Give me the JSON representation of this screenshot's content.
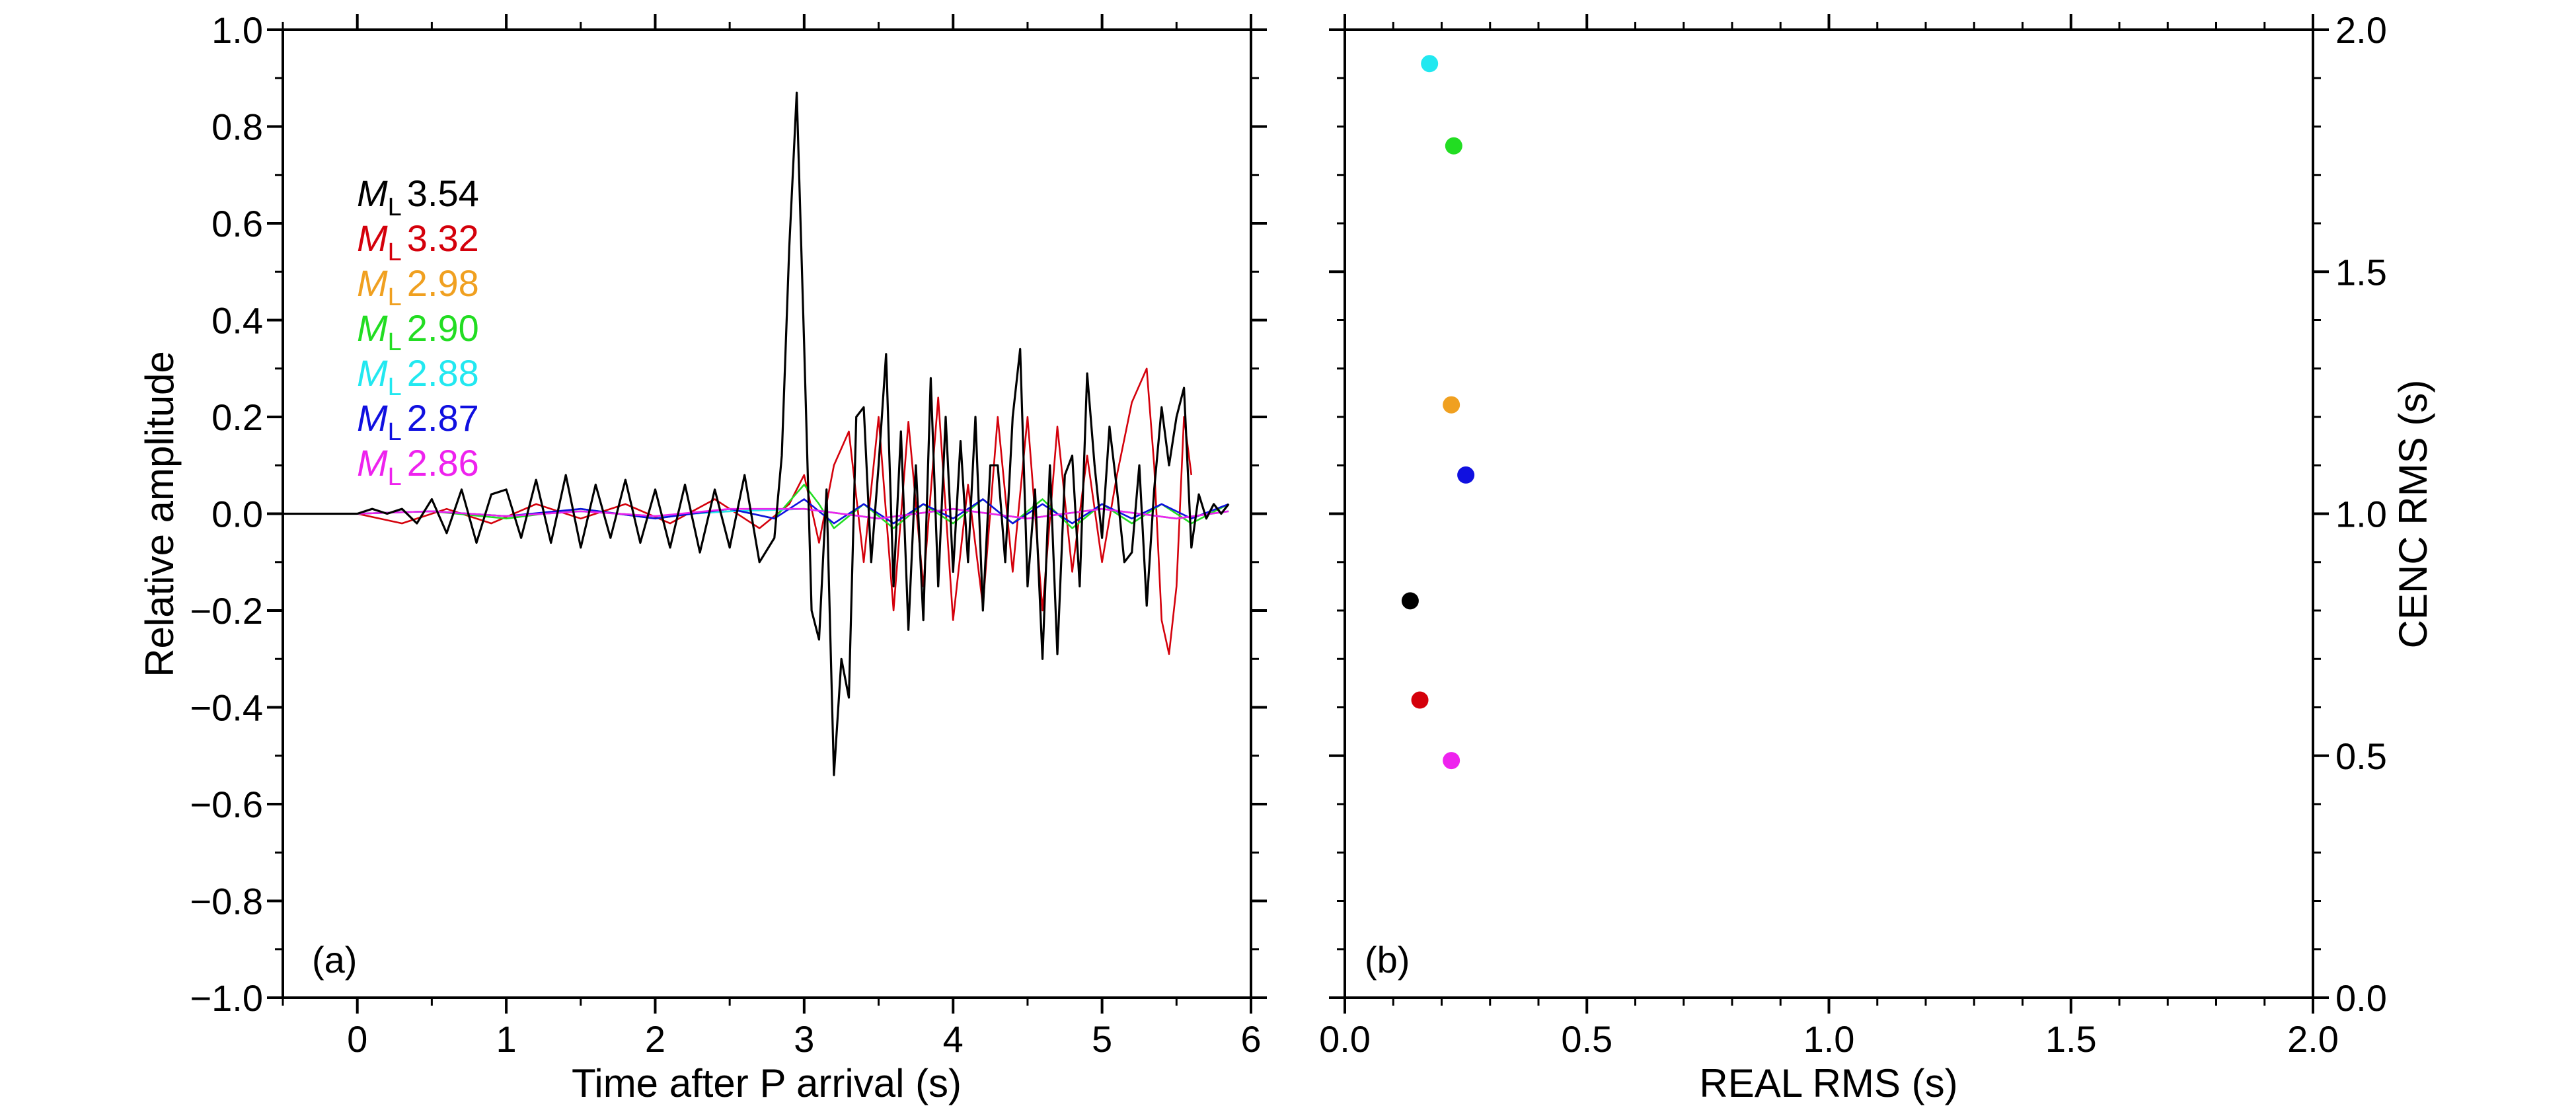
{
  "chart_data": [
    {
      "panel": "a",
      "type": "line",
      "panel_label": "(a)",
      "xlabel": "Time after P arrival (s)",
      "ylabel": "Relative amplitude",
      "xlim": [
        -0.5,
        6
      ],
      "ylim": [
        -1.0,
        1.0
      ],
      "xticks": [
        0,
        1,
        2,
        3,
        4,
        5,
        6
      ],
      "xtick_labels": [
        "0",
        "1",
        "2",
        "3",
        "4",
        "5",
        "6"
      ],
      "yticks": [
        -1.0,
        -0.8,
        -0.6,
        -0.4,
        -0.2,
        0.0,
        0.2,
        0.4,
        0.6,
        0.8,
        1.0
      ],
      "ytick_labels": [
        "−1.0",
        "−0.8",
        "−0.6",
        "−0.4",
        "−0.2",
        "0.0",
        "0.2",
        "0.4",
        "0.6",
        "0.8",
        "1.0"
      ],
      "legend_position": "upper-left",
      "series": [
        {
          "name": "ML 3.54",
          "ml": "3.54",
          "color": "#000000",
          "x": [
            -0.5,
            0,
            0.1,
            0.2,
            0.3,
            0.4,
            0.5,
            0.6,
            0.7,
            0.8,
            0.9,
            1.0,
            1.1,
            1.2,
            1.3,
            1.4,
            1.5,
            1.6,
            1.7,
            1.8,
            1.9,
            2.0,
            2.1,
            2.2,
            2.3,
            2.4,
            2.5,
            2.6,
            2.7,
            2.8,
            2.85,
            2.9,
            2.95,
            3.0,
            3.05,
            3.1,
            3.15,
            3.2,
            3.25,
            3.3,
            3.35,
            3.4,
            3.45,
            3.5,
            3.55,
            3.6,
            3.65,
            3.7,
            3.75,
            3.8,
            3.85,
            3.9,
            3.95,
            4.0,
            4.05,
            4.1,
            4.15,
            4.2,
            4.25,
            4.3,
            4.35,
            4.4,
            4.45,
            4.5,
            4.55,
            4.6,
            4.65,
            4.7,
            4.75,
            4.8,
            4.85,
            4.9,
            4.95,
            5.0,
            5.05,
            5.1,
            5.15,
            5.2,
            5.25,
            5.3,
            5.35,
            5.4,
            5.45,
            5.5,
            5.55,
            5.6,
            5.65,
            5.7,
            5.75,
            5.8,
            5.85
          ],
          "y": [
            0,
            0,
            0.01,
            0.0,
            0.01,
            -0.02,
            0.03,
            -0.04,
            0.05,
            -0.06,
            0.04,
            0.05,
            -0.05,
            0.07,
            -0.06,
            0.08,
            -0.07,
            0.06,
            -0.05,
            0.07,
            -0.06,
            0.05,
            -0.07,
            0.06,
            -0.08,
            0.05,
            -0.07,
            0.08,
            -0.1,
            -0.05,
            0.12,
            0.55,
            0.87,
            0.35,
            -0.2,
            -0.26,
            0.05,
            -0.54,
            -0.3,
            -0.38,
            0.2,
            0.22,
            -0.1,
            0.1,
            0.33,
            -0.15,
            0.17,
            -0.24,
            0.1,
            -0.22,
            0.28,
            -0.15,
            0.2,
            -0.12,
            0.15,
            -0.1,
            0.2,
            -0.2,
            0.1,
            0.1,
            -0.1,
            0.2,
            0.34,
            -0.15,
            0.05,
            -0.3,
            0.1,
            -0.29,
            0.08,
            0.12,
            -0.15,
            0.29,
            0.1,
            -0.05,
            0.18,
            0.05,
            -0.1,
            -0.08,
            0.1,
            -0.19,
            0.05,
            0.22,
            0.1,
            0.2,
            0.26,
            -0.07,
            0.04,
            -0.01,
            0.02,
            0.0,
            0.02
          ]
        },
        {
          "name": "ML 3.32",
          "ml": "3.32",
          "color": "#d4000b",
          "x": [
            -0.5,
            0,
            0.3,
            0.6,
            0.9,
            1.2,
            1.5,
            1.8,
            2.1,
            2.4,
            2.7,
            2.9,
            3.0,
            3.1,
            3.2,
            3.3,
            3.4,
            3.5,
            3.6,
            3.7,
            3.8,
            3.9,
            4.0,
            4.1,
            4.2,
            4.3,
            4.4,
            4.5,
            4.6,
            4.7,
            4.8,
            4.9,
            5.0,
            5.1,
            5.2,
            5.3,
            5.35,
            5.4,
            5.45,
            5.5,
            5.55,
            5.6
          ],
          "y": [
            0,
            0,
            -0.02,
            0.01,
            -0.02,
            0.02,
            -0.01,
            0.02,
            -0.02,
            0.03,
            -0.03,
            0.02,
            0.08,
            -0.06,
            0.1,
            0.17,
            -0.1,
            0.2,
            -0.2,
            0.19,
            -0.15,
            0.24,
            -0.22,
            0.06,
            -0.19,
            0.2,
            -0.12,
            0.2,
            -0.2,
            0.18,
            -0.12,
            0.12,
            -0.1,
            0.08,
            0.23,
            0.3,
            0.1,
            -0.22,
            -0.29,
            -0.15,
            0.2,
            0.08
          ]
        },
        {
          "name": "ML 2.98",
          "ml": "2.98",
          "color": "#f0a020",
          "x": [
            -0.5,
            0,
            0.5,
            1.0,
            1.5,
            2.0,
            2.5,
            3.0,
            3.5,
            4.0,
            4.5,
            5.0,
            5.5,
            5.85
          ],
          "y": [
            0,
            0,
            0.005,
            -0.005,
            0.005,
            -0.005,
            0.005,
            0.01,
            -0.01,
            0.01,
            -0.01,
            0.01,
            -0.01,
            0.005
          ]
        },
        {
          "name": "ML 2.90",
          "ml": "2.90",
          "color": "#22dd22",
          "x": [
            -0.5,
            0,
            0.5,
            1.0,
            1.5,
            2.0,
            2.5,
            2.8,
            3.0,
            3.1,
            3.2,
            3.4,
            3.6,
            3.8,
            4.0,
            4.2,
            4.4,
            4.6,
            4.8,
            5.0,
            5.2,
            5.4,
            5.6,
            5.85
          ],
          "y": [
            0,
            0,
            0.005,
            -0.01,
            0.01,
            -0.01,
            0.01,
            -0.01,
            0.06,
            0.02,
            -0.03,
            0.02,
            -0.03,
            0.02,
            -0.02,
            0.03,
            -0.02,
            0.03,
            -0.03,
            0.02,
            -0.02,
            0.02,
            -0.02,
            0.02
          ]
        },
        {
          "name": "ML 2.88",
          "ml": "2.88",
          "color": "#22e8f0",
          "x": [
            -0.5,
            0,
            0.5,
            1.0,
            1.5,
            2.0,
            2.5,
            3.0,
            3.5,
            4.0,
            4.5,
            5.0,
            5.5,
            5.85
          ],
          "y": [
            0,
            0,
            0.005,
            -0.005,
            0.005,
            -0.005,
            0.005,
            0.01,
            -0.01,
            0.01,
            -0.01,
            0.01,
            -0.01,
            0.005
          ]
        },
        {
          "name": "ML 2.87",
          "ml": "2.87",
          "color": "#1010e0",
          "x": [
            -0.5,
            0,
            0.5,
            1.0,
            1.5,
            2.0,
            2.5,
            2.8,
            3.0,
            3.2,
            3.4,
            3.6,
            3.8,
            4.0,
            4.2,
            4.4,
            4.6,
            4.8,
            5.0,
            5.2,
            5.4,
            5.6,
            5.85
          ],
          "y": [
            0,
            0,
            0.005,
            -0.005,
            0.01,
            -0.01,
            0.01,
            -0.01,
            0.03,
            -0.02,
            0.02,
            -0.02,
            0.02,
            -0.01,
            0.03,
            -0.02,
            0.02,
            -0.02,
            0.02,
            -0.01,
            0.02,
            -0.01,
            0.02
          ]
        },
        {
          "name": "ML 2.86",
          "ml": "2.86",
          "color": "#ee22ee",
          "x": [
            -0.5,
            0,
            0.5,
            1.0,
            1.5,
            2.0,
            2.5,
            3.0,
            3.5,
            4.0,
            4.5,
            5.0,
            5.5,
            5.85
          ],
          "y": [
            0,
            0,
            0.005,
            -0.005,
            0.005,
            -0.005,
            0.01,
            0.01,
            -0.01,
            0.01,
            -0.01,
            0.01,
            -0.01,
            0.005
          ]
        }
      ]
    },
    {
      "panel": "b",
      "type": "scatter",
      "panel_label": "(b)",
      "xlabel": "REAL RMS (s)",
      "ylabel": "CENC RMS (s)",
      "xlim": [
        0.0,
        2.0
      ],
      "ylim": [
        0.0,
        2.0
      ],
      "xticks": [
        0.0,
        0.5,
        1.0,
        1.5,
        2.0
      ],
      "xtick_labels": [
        "0.0",
        "0.5",
        "1.0",
        "1.5",
        "2.0"
      ],
      "yticks": [
        0.0,
        0.5,
        1.0,
        1.5,
        2.0
      ],
      "ytick_labels": [
        "0.0",
        "0.5",
        "1.0",
        "1.5",
        "2.0"
      ],
      "points": [
        {
          "event": "ML 3.54",
          "x": 0.135,
          "y": 0.82,
          "color": "#000000"
        },
        {
          "event": "ML 3.32",
          "x": 0.155,
          "y": 0.615,
          "color": "#d4000b"
        },
        {
          "event": "ML 2.98",
          "x": 0.22,
          "y": 1.225,
          "color": "#f0a020"
        },
        {
          "event": "ML 2.90",
          "x": 0.225,
          "y": 1.76,
          "color": "#22dd22"
        },
        {
          "event": "ML 2.88",
          "x": 0.175,
          "y": 1.93,
          "color": "#22e8f0"
        },
        {
          "event": "ML 2.87",
          "x": 0.25,
          "y": 1.08,
          "color": "#1010e0"
        },
        {
          "event": "ML 2.86",
          "x": 0.22,
          "y": 0.49,
          "color": "#ee22ee"
        }
      ]
    }
  ]
}
